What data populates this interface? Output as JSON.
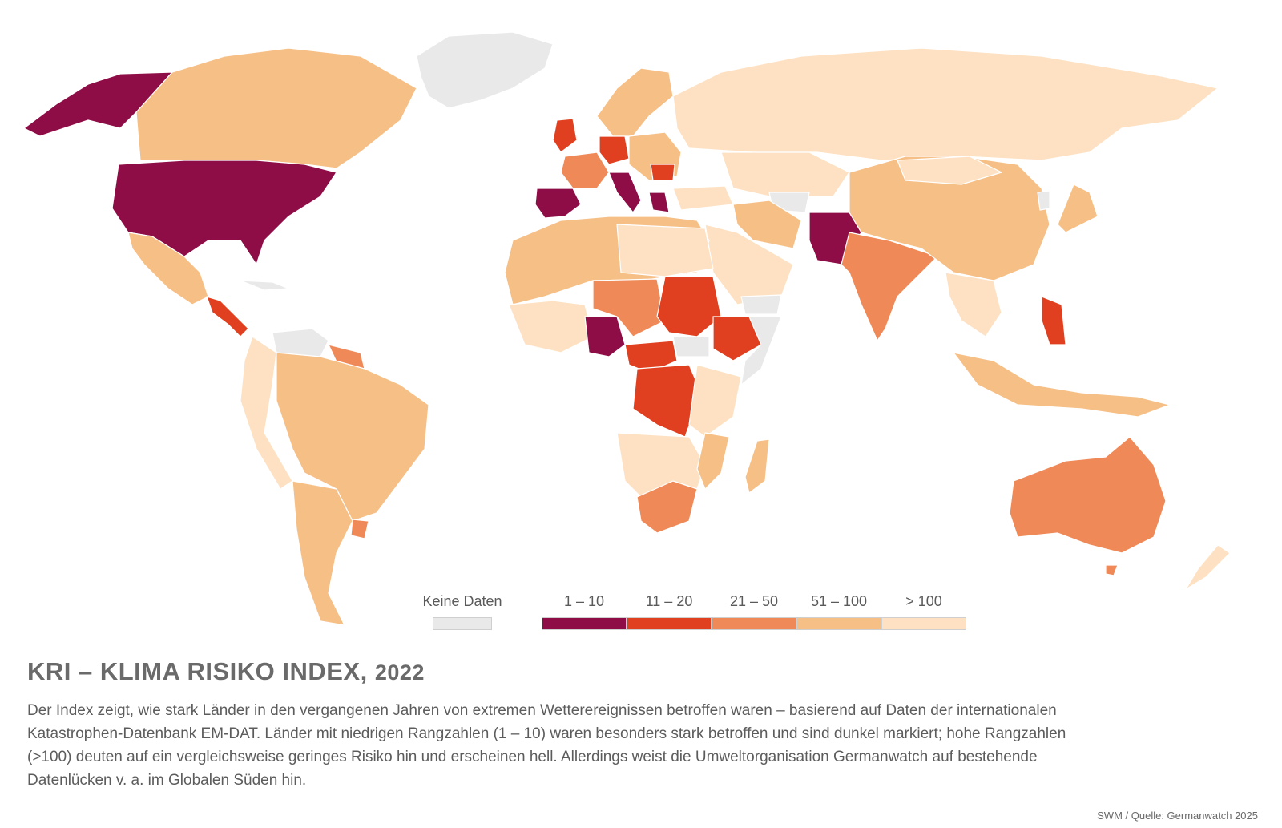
{
  "legend": {
    "no_data_label": "Keine Daten",
    "classes": [
      {
        "label": "1 – 10",
        "color": "#8e0d46"
      },
      {
        "label": "11 – 20",
        "color": "#e0401f"
      },
      {
        "label": "21 – 50",
        "color": "#ef8a58"
      },
      {
        "label": "51 – 100",
        "color": "#f6bf86"
      },
      {
        "label": "> 100",
        "color": "#fde1c2"
      }
    ],
    "no_data_color": "#e9e9e9"
  },
  "title": "KRI – KLIMA RISIKO INDEX,",
  "title_year": "2022",
  "description": "Der Index zeigt, wie stark Länder in den vergangenen Jahren von extremen Wetterereignissen betroffen waren – basierend auf Daten der internationalen Katastrophen-Datenbank EM-DAT. Länder mit niedrigen Rangzahlen (1 – 10) waren besonders stark betroffen und sind dunkel markiert; hohe Rangzahlen (>100) deuten auf ein vergleichsweise geringes Risiko hin und erscheinen hell. Allerdings weist die Umweltorganisation Germanwatch auf bestehende Datenlücken v. a. im Globalen Süden hin.",
  "source": "SWM / Quelle: Germanwatch 2025"
}
